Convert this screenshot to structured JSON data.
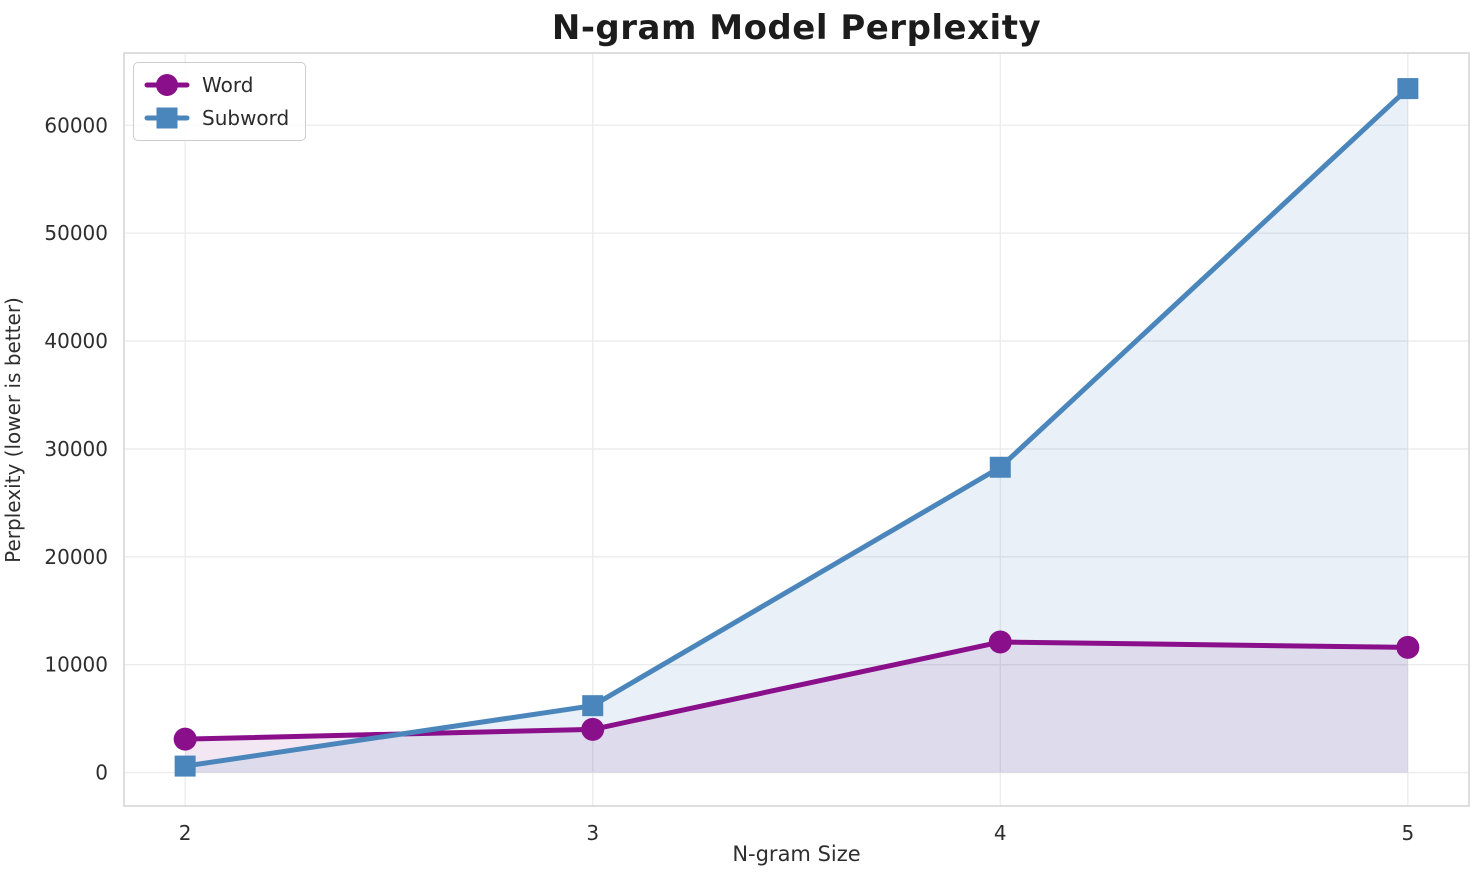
{
  "chart_data": {
    "type": "line",
    "title": "N-gram Model Perplexity",
    "xlabel": "N-gram Size",
    "ylabel": "Perplexity (lower is better)",
    "x": [
      2,
      3,
      4,
      5
    ],
    "series": [
      {
        "name": "Word",
        "marker": "circle",
        "color": "#8a0f8a",
        "fill_opacity": 0.1,
        "values": [
          3100,
          4000,
          12100,
          11600
        ]
      },
      {
        "name": "Subword",
        "marker": "square",
        "color": "#4a86bb",
        "fill_opacity": 0.12,
        "values": [
          600,
          6200,
          28300,
          63400
        ]
      }
    ],
    "xticks": [
      2,
      3,
      4,
      5
    ],
    "yticks": [
      0,
      10000,
      20000,
      30000,
      40000,
      50000,
      60000
    ],
    "xlim": [
      1.85,
      5.15
    ],
    "ylim": [
      -3100,
      66700
    ],
    "grid": true,
    "area_fill_to_zero": true,
    "legend_position": "upper left",
    "colors": {
      "grid": "#ebebeb",
      "spine": "#d6d6d6",
      "tick_text": "#2e2e2e",
      "title_text": "#1c1c1c"
    }
  }
}
